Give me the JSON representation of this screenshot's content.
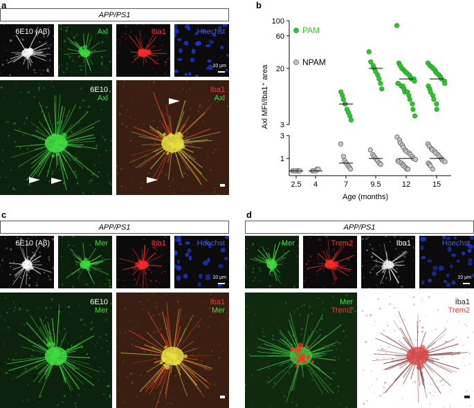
{
  "panel_a": {
    "letter": "a",
    "header": "APP/PS1",
    "small_tiles": [
      {
        "label": "6E10 (Aβ)",
        "color": "#ffffff",
        "type": "plaque-white"
      },
      {
        "label": "Axl",
        "color": "#3fdc3f",
        "type": "plaque-green"
      },
      {
        "label": "Iba1",
        "color": "#ff3030",
        "type": "microglia-red"
      },
      {
        "label": "Hoechst",
        "color": "#3d5bff",
        "type": "nuclei-blue"
      }
    ],
    "scale_text": "10 μm",
    "large_left": {
      "line1": "6E10",
      "line2": "Axl"
    },
    "large_right": {
      "line1": "Iba1",
      "line2": "Axl"
    }
  },
  "panel_b": {
    "letter": "b",
    "chart_data": {
      "type": "scatter",
      "ylabel": "Axl MFI/Iba1⁺ area",
      "xlabel": "Age (months)",
      "categories": [
        "2.5",
        "4",
        "7",
        "9.5",
        "12",
        "15"
      ],
      "upper_yticks": [
        "100",
        "60",
        "20",
        "3"
      ],
      "lower_yticks": [
        "3",
        "1"
      ],
      "legend": [
        {
          "name": "PAM",
          "color": "#31c431"
        },
        {
          "name": "NPAM",
          "color": "#c0c0c0"
        }
      ],
      "pam": {
        "7": [
          9,
          8,
          7,
          6,
          5,
          4.5,
          4,
          3.5
        ],
        "9.5": [
          35,
          25,
          22,
          20,
          18,
          16,
          14,
          12,
          10
        ],
        "12": [
          85,
          24,
          22,
          20,
          19,
          18,
          17,
          16,
          15,
          14,
          14,
          13,
          12,
          12,
          11,
          11,
          10,
          9,
          9,
          8,
          7,
          6,
          5,
          4
        ],
        "15": [
          24,
          22,
          21,
          20,
          19,
          18,
          17,
          16,
          15,
          14,
          13,
          12,
          11,
          10,
          9,
          8,
          7,
          6,
          5
        ]
      },
      "npam": {
        "2.5": [
          0.55,
          0.55,
          0.55,
          0.55,
          0.55,
          0.55
        ],
        "4": [
          0.55,
          0.55,
          0.55,
          0.6,
          0.6
        ],
        "7": [
          2,
          1.1,
          0.9,
          0.8,
          0.7,
          0.65,
          0.6
        ],
        "9.5": [
          1.5,
          1.2,
          1.1,
          1.0,
          0.9,
          0.8,
          0.75
        ],
        "12": [
          2.8,
          2.4,
          2.1,
          1.9,
          1.7,
          1.5,
          1.4,
          1.3,
          1.2,
          1.1,
          1.0,
          0.95,
          0.9,
          0.85,
          0.8,
          0.75,
          0.7,
          0.65,
          0.6,
          0.6
        ],
        "15": [
          2.0,
          1.8,
          1.6,
          1.5,
          1.4,
          1.3,
          1.2,
          1.1,
          1.0,
          0.95,
          0.9,
          0.85,
          0.8,
          0.75,
          0.7,
          0.6
        ]
      },
      "pam_median": {
        "7": 6,
        "9.5": 20,
        "12": 14,
        "15": 14
      },
      "npam_median": {
        "2.5": 0.55,
        "4": 0.55,
        "7": 0.8,
        "9.5": 1.0,
        "12": 1.0,
        "15": 1.0
      }
    }
  },
  "panel_c": {
    "letter": "c",
    "header": "APP/PS1",
    "small_tiles": [
      {
        "label": "6E10 (Aβ)",
        "color": "#ffffff",
        "type": "plaque-white"
      },
      {
        "label": "Mer",
        "color": "#3fdc3f",
        "type": "plaque-green"
      },
      {
        "label": "Iba1",
        "color": "#ff3030",
        "type": "microglia-red"
      },
      {
        "label": "Hoechst",
        "color": "#3d5bff",
        "type": "nuclei-blue"
      }
    ],
    "scale_text": "10 μm",
    "large_left": {
      "line1": "6E10",
      "line2": "Mer"
    },
    "large_right": {
      "line1": "Iba1",
      "line2": "Mer"
    }
  },
  "panel_d": {
    "letter": "d",
    "header": "APP/PS1",
    "small_tiles": [
      {
        "label": "Mer",
        "color": "#3fdc3f",
        "type": "plaque-green"
      },
      {
        "label": "Trem2",
        "color": "#ff3030",
        "type": "dots-red"
      },
      {
        "label": "Iba1",
        "color": "#ffffff",
        "type": "microglia-white"
      },
      {
        "label": "Hoechst",
        "color": "#3d5bff",
        "type": "nuclei-blue"
      }
    ],
    "scale_text": "10 μm",
    "large_left": {
      "line1": "Mer",
      "line2": "Trem2"
    },
    "large_right": {
      "line1": "Iba1",
      "line2": "Trem2"
    }
  }
}
